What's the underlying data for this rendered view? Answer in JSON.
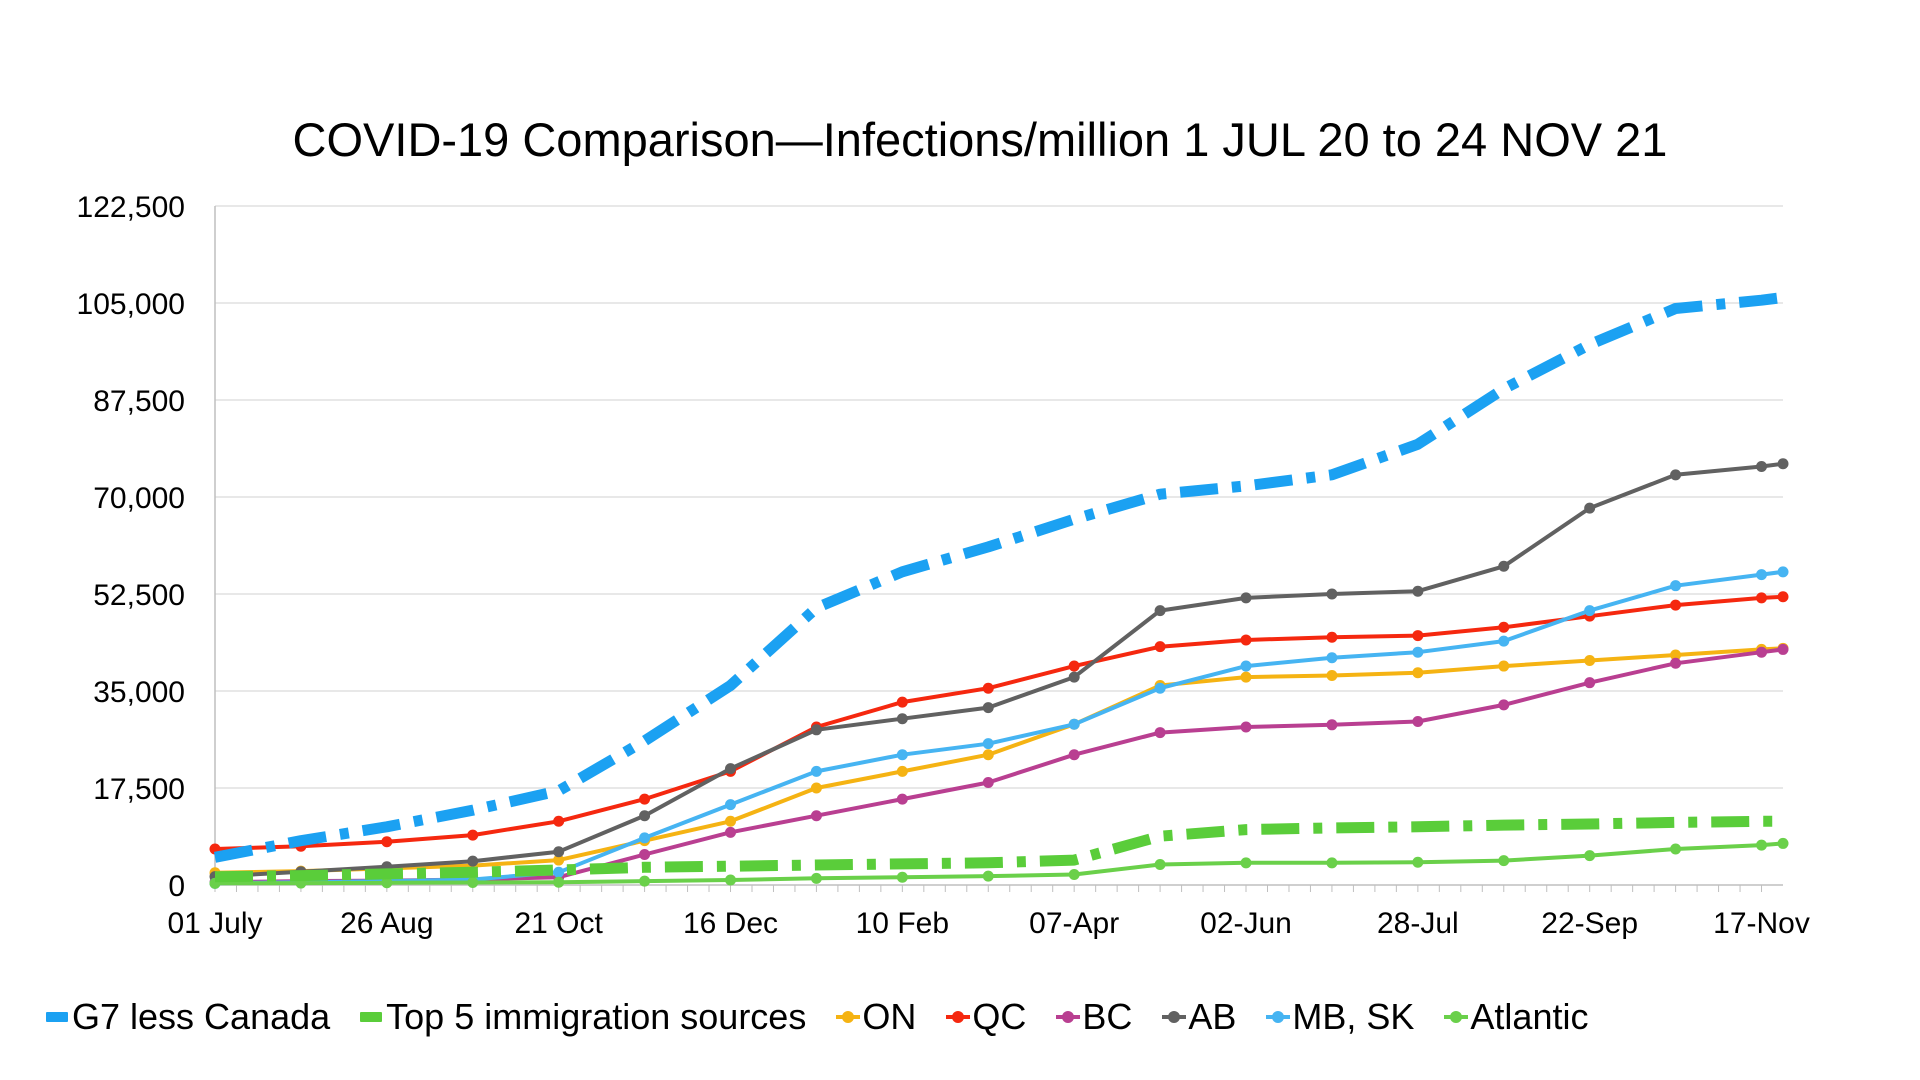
{
  "chart_data": {
    "type": "line",
    "title": "COVID-19 Comparison—Infections/million 1 JUL 20 to 24 NOV 21",
    "xlabel": "",
    "ylabel": "",
    "ylim": [
      0,
      122500
    ],
    "y_ticks": [
      "0",
      "17,500",
      "35,000",
      "52,500",
      "70,000",
      "87,500",
      "105,000",
      "122,500"
    ],
    "x_tick_labels": [
      "01 July",
      "26 Aug",
      "21 Oct",
      "16 Dec",
      "10 Feb",
      "07-Apr",
      "02-Jun",
      "28-Jul",
      "22-Sep",
      "17-Nov"
    ],
    "grid": "horizontal",
    "legend_position": "bottom",
    "x": [
      0,
      4,
      8,
      12,
      16,
      20,
      24,
      28,
      32,
      36,
      40,
      44,
      48,
      52,
      56,
      60,
      64,
      68,
      72,
      73
    ],
    "series": [
      {
        "name": "G7 less Canada",
        "color": "#1BA1F2",
        "style": "dashdot-thick",
        "values": [
          5000,
          8000,
          10500,
          13500,
          17000,
          26000,
          36000,
          50000,
          56500,
          61000,
          66000,
          70500,
          72000,
          74000,
          79500,
          89500,
          97500,
          104000,
          105500,
          106000
        ]
      },
      {
        "name": "Top 5 immigration sources",
        "color": "#5ACD3A",
        "style": "dashdot-thick",
        "values": [
          1500,
          1700,
          2000,
          2300,
          2700,
          3200,
          3400,
          3600,
          3800,
          4000,
          4500,
          8800,
          10000,
          10300,
          10500,
          10800,
          11000,
          11300,
          11500,
          11500
        ]
      },
      {
        "name": "ON",
        "color": "#F5B313",
        "style": "dotted-line",
        "values": [
          2200,
          2500,
          3000,
          3500,
          4500,
          8000,
          11500,
          17500,
          20500,
          23500,
          29000,
          36000,
          37500,
          37800,
          38300,
          39500,
          40500,
          41500,
          42500,
          42700
        ]
      },
      {
        "name": "QC",
        "color": "#F5280F",
        "style": "dotted-line",
        "values": [
          6500,
          7000,
          7800,
          9000,
          11500,
          15500,
          20500,
          28500,
          33000,
          35500,
          39500,
          43000,
          44200,
          44700,
          45000,
          46500,
          48500,
          50500,
          51800,
          52000
        ]
      },
      {
        "name": "BC",
        "color": "#B93F91",
        "style": "dotted-line",
        "values": [
          500,
          700,
          800,
          1000,
          1400,
          5500,
          9500,
          12500,
          15500,
          18500,
          23500,
          27500,
          28500,
          28900,
          29500,
          32500,
          36500,
          40000,
          42000,
          42500
        ]
      },
      {
        "name": "AB",
        "color": "#616161",
        "style": "dotted-line",
        "values": [
          1500,
          2400,
          3300,
          4300,
          6000,
          12500,
          21000,
          28000,
          30000,
          32000,
          37500,
          49500,
          51800,
          52500,
          53000,
          57500,
          68000,
          74000,
          75500,
          76000
        ]
      },
      {
        "name": "MB, SK",
        "color": "#46B4F2",
        "style": "dotted-line",
        "values": [
          300,
          500,
          700,
          1000,
          2300,
          8500,
          14500,
          20500,
          23500,
          25500,
          29000,
          35500,
          39500,
          41000,
          42000,
          44000,
          49500,
          54000,
          56000,
          56500
        ]
      },
      {
        "name": "Atlantic",
        "color": "#6AD04A",
        "style": "dotted-line",
        "values": [
          300,
          350,
          400,
          450,
          500,
          700,
          900,
          1200,
          1400,
          1600,
          1900,
          3700,
          4000,
          4000,
          4100,
          4400,
          5300,
          6500,
          7200,
          7500
        ]
      }
    ]
  }
}
